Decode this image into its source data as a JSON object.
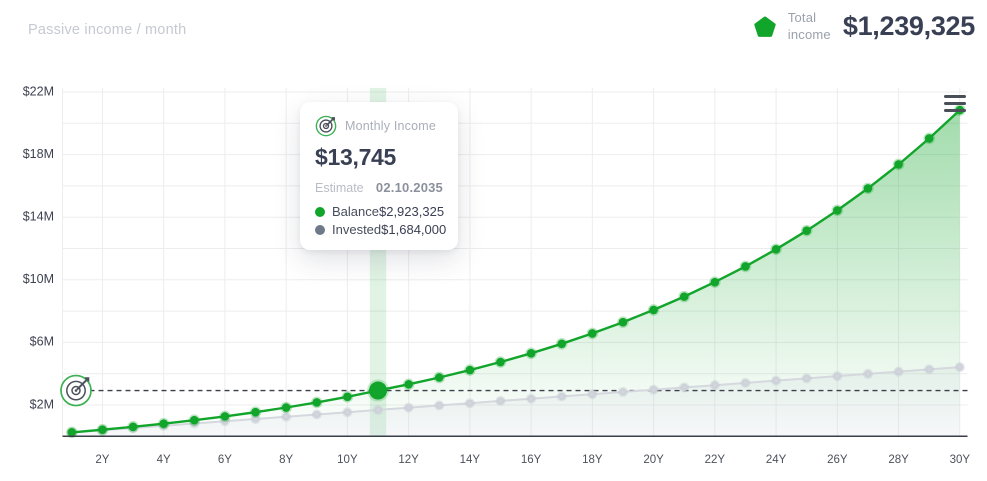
{
  "header": {
    "subtitle": "Passive income / month",
    "total_income_label_line1": "Total",
    "total_income_label_line2": "income",
    "total_income_value": "$1,239,325"
  },
  "tooltip": {
    "title": "Monthly Income",
    "value": "$13,745",
    "estimate_label": "Estimate",
    "estimate_value": "02.10.2035",
    "rows": [
      {
        "label": "Balance",
        "value": "$2,923,325",
        "color": "#12a52b"
      },
      {
        "label": "Invested",
        "value": "$1,684,000",
        "color": "#6e7a8a"
      }
    ]
  },
  "icons": {
    "total_income_icon": "pentagon",
    "tooltip_icon": "target-dart",
    "goal_marker_icon": "target-dart",
    "chart_menu_icon": "hamburger-menu"
  },
  "colors": {
    "accent_green": "#12a52b",
    "invested_gray": "#d5d8de",
    "grid": "#ededee",
    "axis_line": "#3a3e48",
    "dashed_line": "#3a3f49",
    "dark_text": "#3a4054",
    "highlight_band": "rgba(18,165,43,0.13)"
  },
  "chart_data": {
    "type": "area",
    "title": "Passive income / month",
    "x_years": [
      1,
      2,
      3,
      4,
      5,
      6,
      7,
      8,
      9,
      10,
      11,
      12,
      13,
      14,
      15,
      16,
      17,
      18,
      19,
      20,
      21,
      22,
      23,
      24,
      25,
      26,
      27,
      28,
      29,
      30
    ],
    "x_tick_years": [
      2,
      4,
      6,
      8,
      10,
      12,
      14,
      16,
      18,
      20,
      22,
      24,
      26,
      28,
      30
    ],
    "x_tick_labels": [
      "2Y",
      "4Y",
      "6Y",
      "8Y",
      "10Y",
      "12Y",
      "14Y",
      "16Y",
      "18Y",
      "20Y",
      "22Y",
      "24Y",
      "26Y",
      "28Y",
      "30Y"
    ],
    "y_tick_millions": [
      2,
      6,
      10,
      14,
      18,
      22
    ],
    "y_tick_labels": [
      "$2M",
      "$6M",
      "$10M",
      "$14M",
      "$18M",
      "$22M"
    ],
    "y_grid_step_millions": 2,
    "ylim": [
      0,
      22400000
    ],
    "grid": true,
    "legend_position": "tooltip",
    "series": [
      {
        "name": "Balance",
        "color": "#12a52b",
        "values": [
          252000,
          420000,
          604000,
          806000,
          1028000,
          1273000,
          1542000,
          1838000,
          2164000,
          2522000,
          2923325,
          3323000,
          3758000,
          4231000,
          4745000,
          5304000,
          5912000,
          6574000,
          7293000,
          8075000,
          8925000,
          9850000,
          10856000,
          11950000,
          13140000,
          14434000,
          15840000,
          17370000,
          19034000,
          20844000
        ]
      },
      {
        "name": "Invested",
        "color": "#d5d8de",
        "values": [
          244000,
          388000,
          532000,
          676000,
          820000,
          964000,
          1108000,
          1252000,
          1396000,
          1540000,
          1684000,
          1828000,
          1972000,
          2116000,
          2260000,
          2404000,
          2548000,
          2692000,
          2836000,
          2980000,
          3124000,
          3268000,
          3412000,
          3556000,
          3700000,
          3844000,
          3988000,
          4132000,
          4276000,
          4420000
        ]
      }
    ],
    "highlight": {
      "year": 11,
      "date": "02.10.2035",
      "monthly_income": 13745,
      "balance": 2923325,
      "invested": 1684000,
      "total_income": 1239325
    },
    "target_line_value": 2923325,
    "target_line_style": "dashed"
  }
}
